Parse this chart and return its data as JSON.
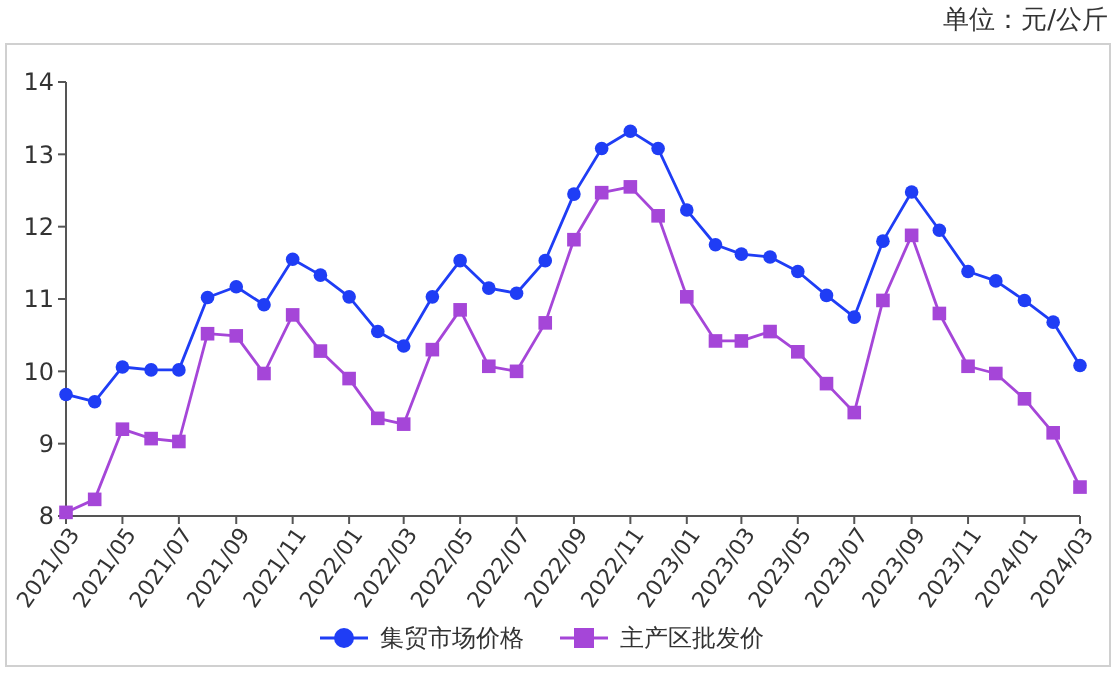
{
  "chart_data": {
    "type": "line",
    "annotations": [
      "单位：元/公斤"
    ],
    "x": [
      "2021-03",
      "2021-04",
      "2021-05",
      "2021-06",
      "2021-07",
      "2021-08",
      "2021-09",
      "2021-10",
      "2021-11",
      "2021-12",
      "2022-01",
      "2022-02",
      "2022-03",
      "2022-04",
      "2022-05",
      "2022-06",
      "2022-07",
      "2022-08",
      "2022-09",
      "2022-10",
      "2022-11",
      "2022-12",
      "2023-01",
      "2023-02",
      "2023-03",
      "2023-04",
      "2023-05",
      "2023-06",
      "2023-07",
      "2023-08",
      "2023-09",
      "2023-10",
      "2023-11",
      "2023-12",
      "2024-01",
      "2024-02",
      "2024-03"
    ],
    "series": [
      {
        "name": "集贸市场价格",
        "color": "#1f3df5",
        "marker": "circle",
        "values": [
          9.68,
          9.58,
          10.06,
          10.02,
          10.02,
          11.02,
          11.17,
          10.92,
          11.55,
          11.33,
          11.03,
          10.55,
          10.35,
          11.03,
          11.53,
          11.15,
          11.08,
          11.53,
          12.45,
          13.08,
          13.32,
          13.08,
          12.23,
          11.75,
          11.62,
          11.58,
          11.38,
          11.05,
          10.75,
          11.8,
          12.48,
          11.95,
          11.38,
          11.25,
          10.98,
          10.68,
          10.08
        ]
      },
      {
        "name": "主产区批发价",
        "color": "#a546d8",
        "marker": "square",
        "values": [
          8.05,
          8.23,
          9.2,
          9.07,
          9.03,
          10.52,
          10.49,
          9.97,
          10.78,
          10.28,
          9.9,
          9.35,
          9.27,
          10.3,
          10.85,
          10.07,
          10.0,
          10.67,
          11.82,
          12.47,
          12.55,
          12.15,
          11.03,
          10.42,
          10.42,
          10.55,
          10.27,
          9.83,
          9.43,
          10.98,
          11.88,
          10.8,
          10.07,
          9.97,
          9.62,
          9.15,
          8.4
        ]
      }
    ],
    "xlim": [
      "2021-03",
      "2024-03"
    ],
    "xticks": [
      {
        "value": "2021-03",
        "label": "2021/03"
      },
      {
        "value": "2021-05",
        "label": "2021/05"
      },
      {
        "value": "2021-07",
        "label": "2021/07"
      },
      {
        "value": "2021-09",
        "label": "2021/09"
      },
      {
        "value": "2021-11",
        "label": "2021/11"
      },
      {
        "value": "2022-01",
        "label": "2022/01"
      },
      {
        "value": "2022-03",
        "label": "2022/03"
      },
      {
        "value": "2022-05",
        "label": "2022/05"
      },
      {
        "value": "2022-07",
        "label": "2022/07"
      },
      {
        "value": "2022-09",
        "label": "2022/09"
      },
      {
        "value": "2022-11",
        "label": "2022/11"
      },
      {
        "value": "2023-01",
        "label": "2023/01"
      },
      {
        "value": "2023-03",
        "label": "2023/03"
      },
      {
        "value": "2023-05",
        "label": "2023/05"
      },
      {
        "value": "2023-07",
        "label": "2023/07"
      },
      {
        "value": "2023-09",
        "label": "2023/09"
      },
      {
        "value": "2023-11",
        "label": "2023/11"
      },
      {
        "value": "2024-01",
        "label": "2024/01"
      },
      {
        "value": "2024-03",
        "label": "2024/03"
      }
    ],
    "ylim": [
      8,
      14
    ],
    "yticks": [
      8,
      9,
      10,
      11,
      12,
      13,
      14
    ],
    "grid": false,
    "legend": "bottom"
  }
}
